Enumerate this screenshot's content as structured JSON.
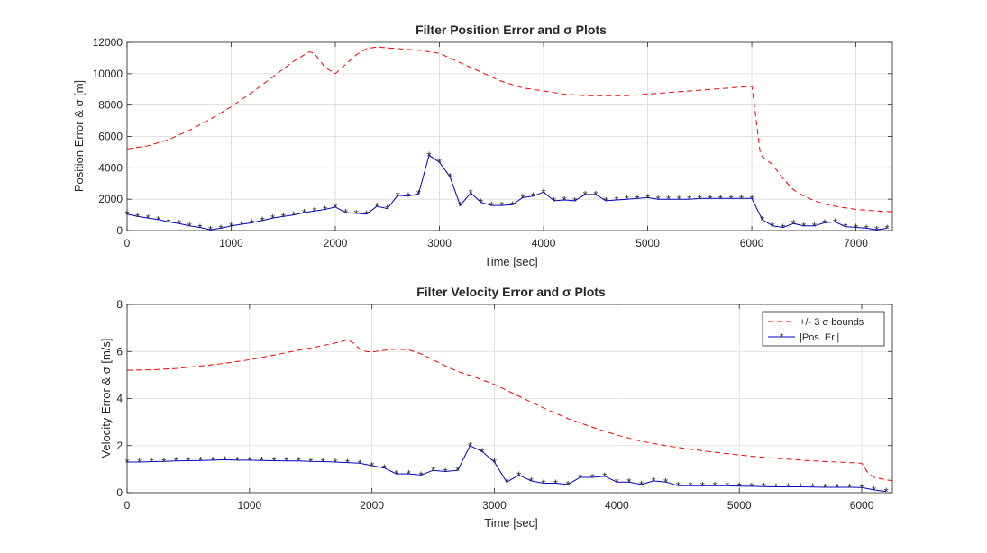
{
  "colors": {
    "bounds": "#ff0000",
    "error": "#0000cd",
    "grid": "#d9d9d9",
    "axis": "#262626"
  },
  "chart_data": [
    {
      "type": "line",
      "title": "Filter Position Error and σ Plots",
      "xlabel": "Time [sec]",
      "ylabel": "Position Error & σ [m]",
      "xlim": [
        0,
        7350
      ],
      "ylim": [
        0,
        12000
      ],
      "xticks": [
        0,
        1000,
        2000,
        3000,
        4000,
        5000,
        6000,
        7000
      ],
      "yticks": [
        0,
        2000,
        4000,
        6000,
        8000,
        10000,
        12000
      ],
      "grid": true,
      "series": [
        {
          "name": "+/- 3 σ bounds",
          "style": "dashed",
          "x": [
            0,
            200,
            400,
            600,
            800,
            1000,
            1200,
            1400,
            1600,
            1750,
            1800,
            1900,
            2000,
            2100,
            2200,
            2300,
            2400,
            2500,
            2600,
            2800,
            3000,
            3200,
            3400,
            3600,
            3800,
            4000,
            4200,
            4400,
            4600,
            4800,
            5000,
            5200,
            5400,
            5600,
            5800,
            6000,
            6020,
            6080,
            6100,
            6200,
            6300,
            6400,
            6500,
            6600,
            6700,
            6800,
            6900,
            7000,
            7100,
            7200,
            7350
          ],
          "y": [
            5200,
            5400,
            5800,
            6400,
            7100,
            7900,
            8800,
            9800,
            10800,
            11400,
            11300,
            10400,
            10000,
            10600,
            11200,
            11600,
            11700,
            11650,
            11600,
            11500,
            11300,
            10700,
            10100,
            9500,
            9100,
            8900,
            8700,
            8600,
            8600,
            8600,
            8700,
            8800,
            8900,
            9000,
            9100,
            9200,
            8200,
            5000,
            4700,
            4200,
            3300,
            2600,
            2200,
            1900,
            1700,
            1550,
            1450,
            1350,
            1300,
            1250,
            1200
          ]
        },
        {
          "name": "|Pos. Er.|",
          "style": "solid-star",
          "x": [
            0,
            100,
            200,
            300,
            400,
            500,
            600,
            700,
            800,
            900,
            1000,
            1100,
            1200,
            1300,
            1400,
            1500,
            1600,
            1700,
            1800,
            1900,
            2000,
            2100,
            2200,
            2300,
            2400,
            2500,
            2600,
            2700,
            2800,
            2900,
            3000,
            3100,
            3200,
            3300,
            3400,
            3500,
            3600,
            3700,
            3800,
            3900,
            4000,
            4100,
            4200,
            4300,
            4400,
            4500,
            4600,
            4700,
            4800,
            4900,
            5000,
            5100,
            5200,
            5300,
            5400,
            5500,
            5600,
            5700,
            5800,
            5900,
            6000,
            6100,
            6200,
            6300,
            6400,
            6500,
            6600,
            6700,
            6800,
            6900,
            7000,
            7100,
            7200,
            7300
          ],
          "y": [
            1050,
            900,
            800,
            700,
            550,
            450,
            300,
            200,
            50,
            150,
            300,
            400,
            500,
            650,
            800,
            900,
            1000,
            1150,
            1250,
            1350,
            1500,
            1150,
            1100,
            1050,
            1550,
            1400,
            2250,
            2200,
            2350,
            4800,
            4350,
            3450,
            1600,
            2400,
            1800,
            1600,
            1600,
            1650,
            2100,
            2200,
            2450,
            1900,
            1950,
            1900,
            2300,
            2300,
            1900,
            1950,
            2000,
            2050,
            2100,
            2000,
            2000,
            2000,
            2000,
            2050,
            2050,
            2050,
            2050,
            2050,
            2050,
            700,
            300,
            200,
            450,
            300,
            300,
            500,
            550,
            250,
            200,
            150,
            50,
            150
          ]
        }
      ]
    },
    {
      "type": "line",
      "title": "Filter Velocity Error and σ Plots",
      "xlabel": "Time [sec]",
      "ylabel": "Velocity Error & σ [m/s]",
      "xlim": [
        0,
        6250
      ],
      "ylim": [
        0,
        8
      ],
      "xticks": [
        0,
        1000,
        2000,
        3000,
        4000,
        5000,
        6000
      ],
      "yticks": [
        0,
        2,
        4,
        6,
        8
      ],
      "grid": true,
      "legend": {
        "placement": "top-right",
        "entries": [
          "+/- 3 σ bounds",
          "|Pos. Er.|"
        ]
      },
      "series": [
        {
          "name": "+/- 3 σ bounds",
          "style": "dashed",
          "x": [
            0,
            200,
            400,
            600,
            800,
            1000,
            1200,
            1400,
            1600,
            1750,
            1800,
            1850,
            1900,
            1950,
            2000,
            2100,
            2200,
            2300,
            2400,
            2500,
            2600,
            2700,
            2800,
            3000,
            3200,
            3400,
            3600,
            3800,
            4000,
            4200,
            4400,
            4600,
            4800,
            5000,
            5200,
            5400,
            5600,
            5800,
            6000,
            6050,
            6100,
            6250
          ],
          "y": [
            5.2,
            5.22,
            5.28,
            5.38,
            5.5,
            5.65,
            5.85,
            6.05,
            6.25,
            6.42,
            6.5,
            6.35,
            6.1,
            6.0,
            5.98,
            6.05,
            6.1,
            6.07,
            5.9,
            5.65,
            5.38,
            5.15,
            4.98,
            4.6,
            4.1,
            3.6,
            3.15,
            2.78,
            2.45,
            2.18,
            2.0,
            1.85,
            1.72,
            1.6,
            1.5,
            1.42,
            1.35,
            1.3,
            1.25,
            0.85,
            0.65,
            0.5
          ]
        },
        {
          "name": "|Pos. Er.|",
          "style": "solid-star",
          "x": [
            0,
            100,
            200,
            300,
            400,
            500,
            600,
            700,
            800,
            900,
            1000,
            1100,
            1200,
            1300,
            1400,
            1500,
            1600,
            1700,
            1800,
            1900,
            2000,
            2100,
            2200,
            2300,
            2400,
            2500,
            2600,
            2700,
            2800,
            2900,
            3000,
            3100,
            3200,
            3300,
            3400,
            3500,
            3600,
            3700,
            3800,
            3900,
            4000,
            4100,
            4200,
            4300,
            4400,
            4500,
            4600,
            4700,
            4800,
            4900,
            5000,
            5100,
            5200,
            5300,
            5400,
            5500,
            5600,
            5700,
            5800,
            5900,
            6000,
            6100,
            6200
          ],
          "y": [
            1.3,
            1.3,
            1.32,
            1.33,
            1.35,
            1.36,
            1.37,
            1.38,
            1.4,
            1.38,
            1.38,
            1.37,
            1.36,
            1.35,
            1.35,
            1.33,
            1.32,
            1.3,
            1.28,
            1.25,
            1.15,
            1.05,
            0.8,
            0.8,
            0.75,
            0.95,
            0.9,
            0.95,
            2.0,
            1.75,
            1.3,
            0.45,
            0.75,
            0.5,
            0.4,
            0.4,
            0.35,
            0.65,
            0.65,
            0.7,
            0.45,
            0.45,
            0.35,
            0.5,
            0.45,
            0.3,
            0.3,
            0.3,
            0.3,
            0.3,
            0.28,
            0.27,
            0.26,
            0.25,
            0.25,
            0.25,
            0.24,
            0.23,
            0.23,
            0.23,
            0.22,
            0.12,
            0.05
          ]
        }
      ]
    }
  ]
}
